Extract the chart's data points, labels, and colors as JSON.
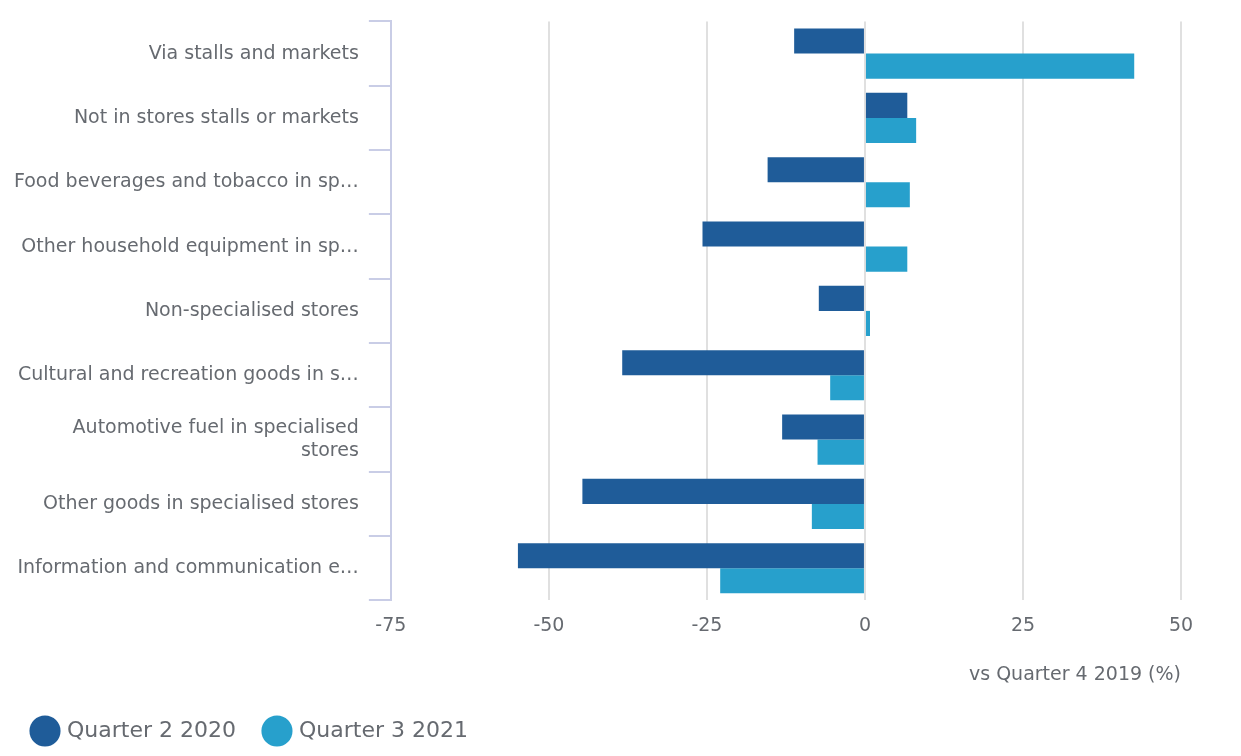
{
  "chart_data": {
    "type": "bar",
    "orientation": "horizontal",
    "xlabel": "vs Quarter 4 2019 (%)",
    "categories": [
      "Via stalls and markets",
      "Not in stores stalls or markets",
      "Food beverages and tobacco in sp…",
      "Other household equipment in sp…",
      "Non-specialised stores",
      "Cultural and recreation goods in s…",
      "Automotive fuel in specialised stores",
      "Other goods in specialised stores",
      "Information and communication e…"
    ],
    "series": [
      {
        "name": "Quarter 2 2020",
        "color": "#1f5c99",
        "values": [
          -11.2,
          6.7,
          -15.4,
          -25.7,
          -7.3,
          -38.4,
          -13.1,
          -44.7,
          -54.9
        ]
      },
      {
        "name": "Quarter 3 2021",
        "color": "#27a0cc",
        "values": [
          42.6,
          8.1,
          7.1,
          6.7,
          0.8,
          -5.5,
          -7.5,
          -8.4,
          -22.9
        ]
      }
    ],
    "xlim": [
      -75,
      50
    ],
    "xticks": [
      -75,
      -50,
      -25,
      0,
      25,
      50
    ],
    "grid": "x",
    "legend": "bottom left"
  }
}
